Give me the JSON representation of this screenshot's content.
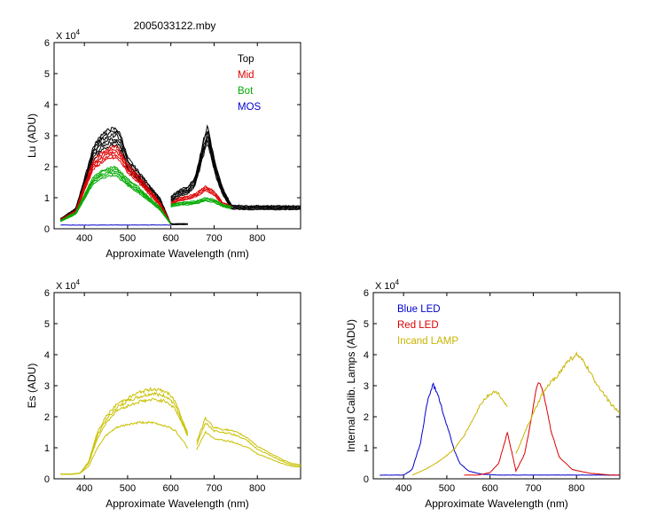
{
  "title": "2005033122.mby",
  "chart_data": [
    {
      "type": "line",
      "id": "top-left",
      "xlabel": "Approximate Wavelength (nm)",
      "ylabel": "Lu (ADU)",
      "y_multiplier_label": "X 10",
      "y_multiplier_exp": "4",
      "xlim": [
        330,
        900
      ],
      "ylim": [
        0,
        6
      ],
      "xticks": [
        400,
        500,
        600,
        700,
        800
      ],
      "xtick_labels": [
        "400",
        "500",
        "600",
        "700",
        "800"
      ],
      "yticks": [
        0,
        1,
        2,
        3,
        4,
        5,
        6
      ],
      "ytick_labels": [
        "0",
        "1",
        "2",
        "3",
        "4",
        "5",
        "6"
      ],
      "legend": [
        {
          "label": "Top",
          "color": "#000000"
        },
        {
          "label": "Mid",
          "color": "#dd0000"
        },
        {
          "label": "Bot",
          "color": "#00aa00"
        },
        {
          "label": "MOS",
          "color": "#0000cc"
        }
      ],
      "series": [
        {
          "name": "Top",
          "color": "#000000",
          "n_lines": 6,
          "x": [
            345,
            380,
            405,
            420,
            440,
            460,
            475,
            485,
            500,
            525,
            550,
            575,
            600,
            640
          ],
          "y": [
            0.3,
            0.6,
            1.7,
            2.4,
            2.8,
            2.95,
            2.95,
            2.75,
            2.1,
            1.7,
            1.3,
            0.9,
            0.15,
            0.15
          ]
        },
        {
          "name": "Top",
          "color": "#000000",
          "n_lines": 6,
          "x": [
            600,
            620,
            640,
            655,
            665,
            675,
            685,
            695,
            705,
            720,
            740,
            780,
            830,
            900
          ],
          "y": [
            0.95,
            1.15,
            1.25,
            1.5,
            2.0,
            2.6,
            3.05,
            2.4,
            1.8,
            1.2,
            0.7,
            0.68,
            0.68,
            0.68
          ]
        },
        {
          "name": "Mid",
          "color": "#dd0000",
          "n_lines": 5,
          "x": [
            345,
            380,
            405,
            420,
            440,
            460,
            475,
            485,
            500,
            525,
            550,
            575,
            600
          ],
          "y": [
            0.28,
            0.55,
            1.5,
            2.05,
            2.3,
            2.45,
            2.45,
            2.3,
            1.95,
            1.6,
            1.2,
            0.8,
            0.15
          ]
        },
        {
          "name": "Mid",
          "color": "#dd0000",
          "n_lines": 4,
          "x": [
            600,
            620,
            640,
            660,
            680,
            700,
            720,
            740
          ],
          "y": [
            0.8,
            0.95,
            1.0,
            1.1,
            1.3,
            1.15,
            0.8,
            0.7
          ]
        },
        {
          "name": "Bot",
          "color": "#00aa00",
          "n_lines": 5,
          "x": [
            345,
            380,
            405,
            420,
            440,
            460,
            475,
            485,
            500,
            525,
            550,
            575,
            600
          ],
          "y": [
            0.25,
            0.5,
            1.15,
            1.55,
            1.75,
            1.85,
            1.85,
            1.7,
            1.5,
            1.25,
            0.95,
            0.65,
            0.15
          ]
        },
        {
          "name": "Bot",
          "color": "#00aa00",
          "n_lines": 4,
          "x": [
            600,
            620,
            640,
            660,
            680,
            700,
            720,
            740
          ],
          "y": [
            0.75,
            0.8,
            0.82,
            0.85,
            0.95,
            0.9,
            0.75,
            0.68
          ]
        },
        {
          "name": "MOS",
          "color": "#0000cc",
          "n_lines": 1,
          "x": [
            345,
            600
          ],
          "y": [
            0.12,
            0.12
          ]
        }
      ]
    },
    {
      "type": "line",
      "id": "bottom-left",
      "xlabel": "Approximate Wavelength (nm)",
      "ylabel": "Es  (ADU)",
      "y_multiplier_label": "X 10",
      "y_multiplier_exp": "4",
      "xlim": [
        330,
        900
      ],
      "ylim": [
        0,
        6
      ],
      "xticks": [
        400,
        500,
        600,
        700,
        800
      ],
      "xtick_labels": [
        "400",
        "500",
        "600",
        "700",
        "800"
      ],
      "yticks": [
        0,
        1,
        2,
        3,
        4,
        5,
        6
      ],
      "ytick_labels": [
        "0",
        "1",
        "2",
        "3",
        "4",
        "5",
        "6"
      ],
      "series": [
        {
          "color": "#c8c000",
          "x": [
            345,
            370,
            390,
            410,
            430,
            450,
            475,
            500,
            530,
            560,
            590,
            610,
            630,
            640
          ],
          "y": [
            0.15,
            0.15,
            0.18,
            0.55,
            1.5,
            2.0,
            2.4,
            2.6,
            2.8,
            2.9,
            2.8,
            2.5,
            1.8,
            1.45
          ]
        },
        {
          "color": "#c8c000",
          "x": [
            345,
            370,
            390,
            410,
            430,
            450,
            475,
            500,
            530,
            560,
            590,
            610,
            630,
            640
          ],
          "y": [
            0.15,
            0.15,
            0.18,
            0.52,
            1.4,
            1.9,
            2.3,
            2.5,
            2.65,
            2.75,
            2.65,
            2.4,
            1.7,
            1.4
          ]
        },
        {
          "color": "#c8c000",
          "x": [
            345,
            370,
            390,
            410,
            430,
            450,
            475,
            500,
            530,
            560,
            590,
            610,
            630,
            640
          ],
          "y": [
            0.15,
            0.15,
            0.18,
            0.5,
            1.3,
            1.8,
            2.2,
            2.35,
            2.5,
            2.55,
            2.5,
            2.25,
            1.65,
            1.35
          ]
        },
        {
          "color": "#c8c000",
          "x": [
            345,
            370,
            390,
            410,
            430,
            450,
            475,
            500,
            530,
            560,
            590,
            610,
            630,
            640
          ],
          "y": [
            0.15,
            0.15,
            0.18,
            0.4,
            1.0,
            1.4,
            1.65,
            1.75,
            1.82,
            1.8,
            1.7,
            1.55,
            1.2,
            0.95
          ]
        },
        {
          "color": "#c8c000",
          "x": [
            660,
            680,
            700,
            720,
            740,
            760,
            780,
            800,
            820,
            840,
            860,
            880,
            900
          ],
          "y": [
            1.2,
            1.95,
            1.65,
            1.6,
            1.55,
            1.45,
            1.3,
            1.05,
            0.9,
            0.75,
            0.6,
            0.5,
            0.45
          ]
        },
        {
          "color": "#c8c000",
          "x": [
            660,
            680,
            700,
            720,
            740,
            760,
            780,
            800,
            820,
            840,
            860,
            880,
            900
          ],
          "y": [
            1.1,
            1.8,
            1.55,
            1.5,
            1.45,
            1.35,
            1.2,
            0.95,
            0.82,
            0.68,
            0.55,
            0.45,
            0.42
          ]
        },
        {
          "color": "#c8c000",
          "x": [
            660,
            680,
            700,
            720,
            740,
            760,
            780,
            800,
            820,
            840,
            860,
            880,
            900
          ],
          "y": [
            0.95,
            1.5,
            1.3,
            1.25,
            1.2,
            1.1,
            1.0,
            0.8,
            0.7,
            0.58,
            0.48,
            0.4,
            0.38
          ]
        }
      ]
    },
    {
      "type": "line",
      "id": "bottom-right",
      "xlabel": "Approximate Wavelength (nm)",
      "ylabel": "Internal Calib. Lamps (ADU)",
      "y_multiplier_label": "X 10",
      "y_multiplier_exp": "4",
      "xlim": [
        330,
        900
      ],
      "ylim": [
        0,
        6
      ],
      "xticks": [
        400,
        500,
        600,
        700,
        800
      ],
      "xtick_labels": [
        "400",
        "500",
        "600",
        "700",
        "800"
      ],
      "yticks": [
        0,
        1,
        2,
        3,
        4,
        5,
        6
      ],
      "ytick_labels": [
        "0",
        "1",
        "2",
        "3",
        "4",
        "5",
        "6"
      ],
      "legend": [
        {
          "label": "Blue LED",
          "color": "#0000cc"
        },
        {
          "label": "Red LED",
          "color": "#dd0000"
        },
        {
          "label": "Incand LAMP",
          "color": "#c8b400"
        }
      ],
      "series": [
        {
          "name": "Blue LED",
          "color": "#0000cc",
          "x": [
            345,
            400,
            420,
            440,
            455,
            468,
            480,
            492,
            505,
            518,
            530,
            550,
            580,
            620,
            700,
            800,
            900
          ],
          "y": [
            0.12,
            0.12,
            0.3,
            1.2,
            2.5,
            3.05,
            2.7,
            2.1,
            1.5,
            0.9,
            0.5,
            0.25,
            0.15,
            0.12,
            0.12,
            0.12,
            0.12
          ]
        },
        {
          "name": "Red LED",
          "color": "#dd0000",
          "x": [
            540,
            570,
            600,
            620,
            640,
            660,
            680,
            695,
            705,
            715,
            725,
            740,
            760,
            790,
            830,
            880,
            900
          ],
          "y": [
            0.12,
            0.12,
            0.2,
            0.5,
            1.5,
            0.25,
            0.8,
            1.9,
            2.8,
            3.15,
            2.7,
            1.6,
            0.7,
            0.3,
            0.18,
            0.12,
            0.12
          ]
        },
        {
          "name": "Incand LAMP",
          "color": "#c8b400",
          "x": [
            420,
            450,
            480,
            500,
            520,
            540,
            560,
            580,
            600,
            615,
            625,
            640
          ],
          "y": [
            0.12,
            0.3,
            0.55,
            0.75,
            1.0,
            1.4,
            1.9,
            2.45,
            2.75,
            2.8,
            2.65,
            2.3
          ]
        },
        {
          "name": "Incand LAMP",
          "color": "#c8b400",
          "x": [
            660,
            690,
            720,
            740,
            760,
            780,
            800,
            820,
            840,
            860,
            880,
            900
          ],
          "y": [
            0.8,
            1.8,
            2.7,
            3.1,
            3.4,
            3.8,
            4.0,
            3.7,
            3.2,
            2.8,
            2.4,
            2.1
          ]
        }
      ]
    }
  ]
}
